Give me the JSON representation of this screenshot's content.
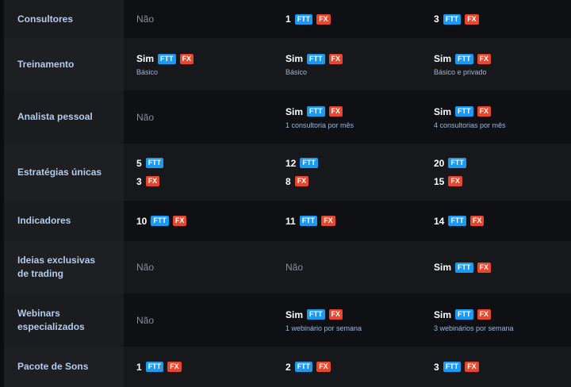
{
  "colors": {
    "FTT": "#1a9af0",
    "FX": "#e8472e",
    "label": "#b5cbe9"
  },
  "rows": [
    {
      "label": "Consultores",
      "cells": [
        {
          "lines": [
            {
              "value": "Não",
              "muted": true,
              "tags": []
            }
          ]
        },
        {
          "lines": [
            {
              "value": "1",
              "tags": [
                "FTT",
                "FX"
              ]
            }
          ]
        },
        {
          "lines": [
            {
              "value": "3",
              "tags": [
                "FTT",
                "FX"
              ]
            }
          ]
        }
      ]
    },
    {
      "label": "Treinamento",
      "cells": [
        {
          "lines": [
            {
              "value": "Sim",
              "tags": [
                "FTT",
                "FX"
              ]
            }
          ],
          "note": "Básico"
        },
        {
          "lines": [
            {
              "value": "Sim",
              "tags": [
                "FTT",
                "FX"
              ]
            }
          ],
          "note": "Básico"
        },
        {
          "lines": [
            {
              "value": "Sim",
              "tags": [
                "FTT",
                "FX"
              ]
            }
          ],
          "note": "Básico e privado"
        }
      ]
    },
    {
      "label": "Analista pessoal",
      "cells": [
        {
          "lines": [
            {
              "value": "Não",
              "muted": true,
              "tags": []
            }
          ]
        },
        {
          "lines": [
            {
              "value": "Sim",
              "tags": [
                "FTT",
                "FX"
              ]
            }
          ],
          "note": "1 consultoria por mês"
        },
        {
          "lines": [
            {
              "value": "Sim",
              "tags": [
                "FTT",
                "FX"
              ]
            }
          ],
          "note": "4 consultorias por mês"
        }
      ]
    },
    {
      "label": "Estratégias únicas",
      "cells": [
        {
          "lines": [
            {
              "value": "5",
              "tags": [
                "FTT"
              ]
            },
            {
              "value": "3",
              "tags": [
                "FX"
              ]
            }
          ]
        },
        {
          "lines": [
            {
              "value": "12",
              "tags": [
                "FTT"
              ]
            },
            {
              "value": "8",
              "tags": [
                "FX"
              ]
            }
          ]
        },
        {
          "lines": [
            {
              "value": "20",
              "tags": [
                "FTT"
              ]
            },
            {
              "value": "15",
              "tags": [
                "FX"
              ]
            }
          ]
        }
      ]
    },
    {
      "label": "Indicadores",
      "cells": [
        {
          "lines": [
            {
              "value": "10",
              "tags": [
                "FTT",
                "FX"
              ]
            }
          ]
        },
        {
          "lines": [
            {
              "value": "11",
              "tags": [
                "FTT",
                "FX"
              ]
            }
          ]
        },
        {
          "lines": [
            {
              "value": "14",
              "tags": [
                "FTT",
                "FX"
              ]
            }
          ]
        }
      ]
    },
    {
      "label": "Ideias exclusivas de trading",
      "cells": [
        {
          "lines": [
            {
              "value": "Não",
              "muted": true,
              "tags": []
            }
          ]
        },
        {
          "lines": [
            {
              "value": "Não",
              "muted": true,
              "tags": []
            }
          ]
        },
        {
          "lines": [
            {
              "value": "Sim",
              "tags": [
                "FTT",
                "FX"
              ]
            }
          ]
        }
      ]
    },
    {
      "label": "Webinars especializados",
      "cells": [
        {
          "lines": [
            {
              "value": "Não",
              "muted": true,
              "tags": []
            }
          ]
        },
        {
          "lines": [
            {
              "value": "Sim",
              "tags": [
                "FTT",
                "FX"
              ]
            }
          ],
          "note": "1 webinário por semana"
        },
        {
          "lines": [
            {
              "value": "Sim",
              "tags": [
                "FTT",
                "FX"
              ]
            }
          ],
          "note": "3 webinários por semana"
        }
      ]
    },
    {
      "label": "Pacote de Sons",
      "cells": [
        {
          "lines": [
            {
              "value": "1",
              "tags": [
                "FTT",
                "FX"
              ]
            }
          ]
        },
        {
          "lines": [
            {
              "value": "2",
              "tags": [
                "FTT",
                "FX"
              ]
            }
          ]
        },
        {
          "lines": [
            {
              "value": "3",
              "tags": [
                "FTT",
                "FX"
              ]
            }
          ]
        }
      ]
    }
  ]
}
